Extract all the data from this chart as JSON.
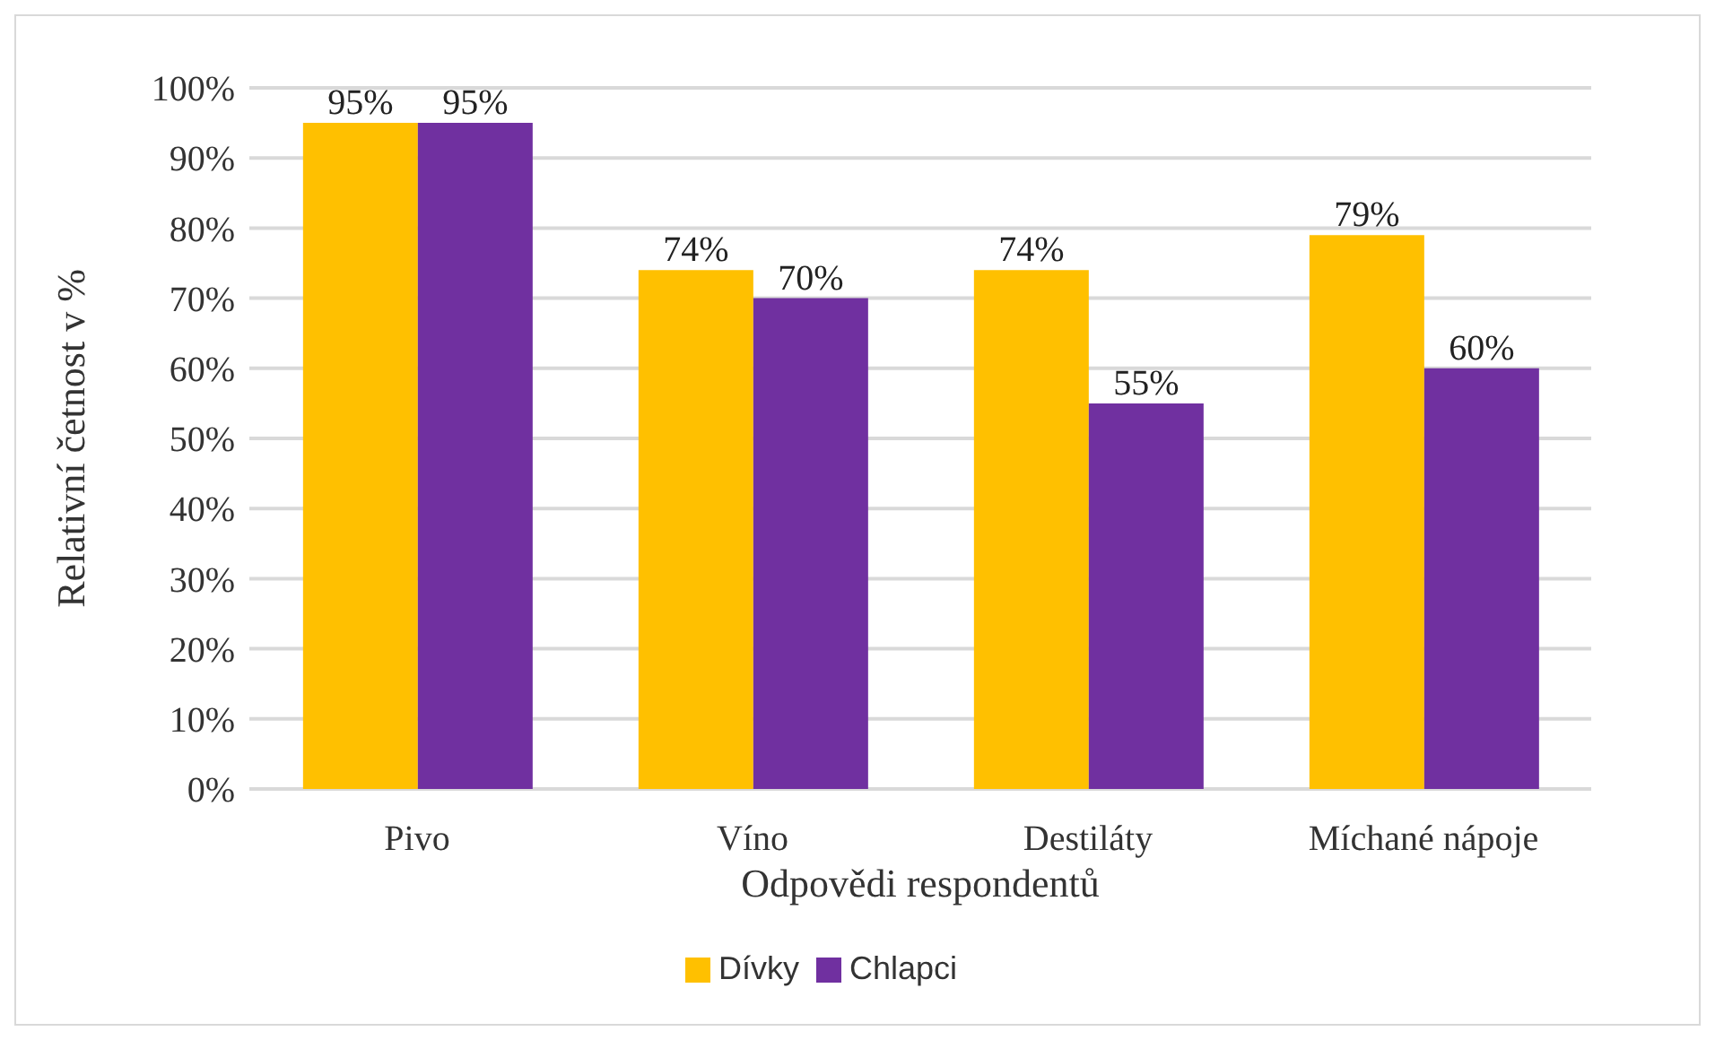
{
  "chart_data": {
    "type": "bar",
    "xlabel": "Odpovědi respondentů",
    "ylabel": "Relativní četnost v %",
    "categories": [
      "Pivo",
      "Víno",
      "Destiláty",
      "Míchané nápoje"
    ],
    "series": [
      {
        "name": "Dívky",
        "color": "#ffc000",
        "values": [
          95,
          74,
          74,
          79
        ],
        "value_labels": [
          "95%",
          "74%",
          "74%",
          "79%"
        ]
      },
      {
        "name": "Chlapci",
        "color": "#7030a0",
        "values": [
          95,
          70,
          55,
          60
        ],
        "value_labels": [
          "95%",
          "70%",
          "55%",
          "60%"
        ]
      }
    ],
    "ylim": [
      0,
      100
    ],
    "yticks": [
      {
        "value": 0,
        "label": "0%"
      },
      {
        "value": 10,
        "label": "10%"
      },
      {
        "value": 20,
        "label": "20%"
      },
      {
        "value": 30,
        "label": "30%"
      },
      {
        "value": 40,
        "label": "40%"
      },
      {
        "value": 50,
        "label": "50%"
      },
      {
        "value": 60,
        "label": "60%"
      },
      {
        "value": 70,
        "label": "70%"
      },
      {
        "value": 80,
        "label": "80%"
      },
      {
        "value": 90,
        "label": "90%"
      },
      {
        "value": 100,
        "label": "100%"
      }
    ],
    "grid": "y",
    "legend": "bottom"
  }
}
